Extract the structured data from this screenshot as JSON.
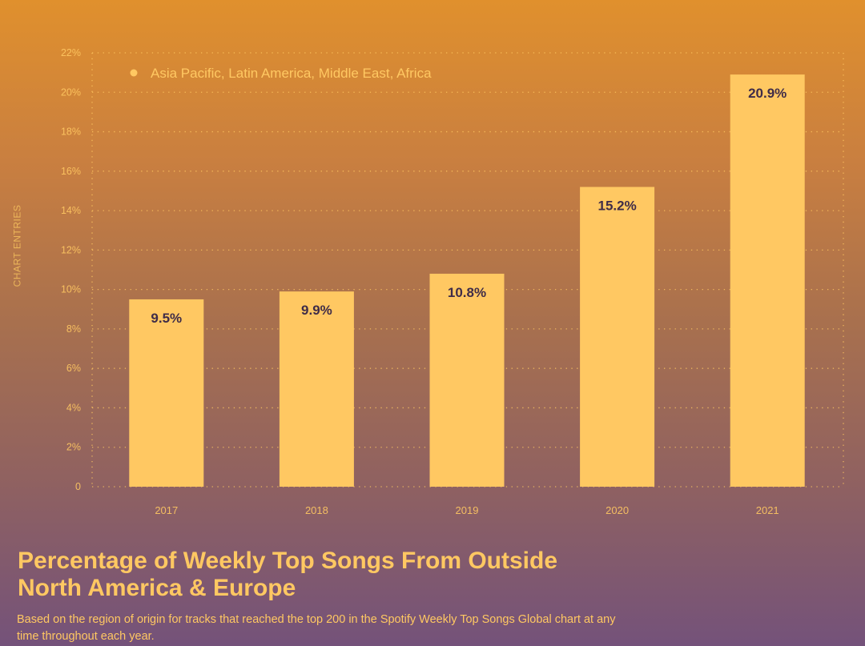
{
  "chart_data": {
    "type": "bar",
    "title": "Percentage of Weekly Top Songs From Outside North America & Europe",
    "subtitle": "Based on the region of origin for tracks that reached the top 200 in the Spotify Weekly Top Songs Global chart at any time throughout each year.",
    "xlabel": "",
    "ylabel": "CHART ENTRIES",
    "categories": [
      "2017",
      "2018",
      "2019",
      "2020",
      "2021"
    ],
    "series": [
      {
        "name": "Asia Pacific, Latin America, Middle East, Africa",
        "values": [
          9.5,
          9.9,
          10.8,
          15.2,
          20.9
        ]
      }
    ],
    "data_labels": [
      "9.5%",
      "9.9%",
      "10.8%",
      "15.2%",
      "20.9%"
    ],
    "ylim": [
      0,
      22
    ],
    "yticks": [
      "0",
      "2%",
      "4%",
      "6%",
      "8%",
      "10%",
      "12%",
      "14%",
      "16%",
      "18%",
      "20%",
      "22%"
    ],
    "grid": true,
    "legend_position": "top-left",
    "colors": {
      "bar": "#ffc862",
      "text": "#ffc862",
      "data_label": "#3f2c48"
    }
  }
}
